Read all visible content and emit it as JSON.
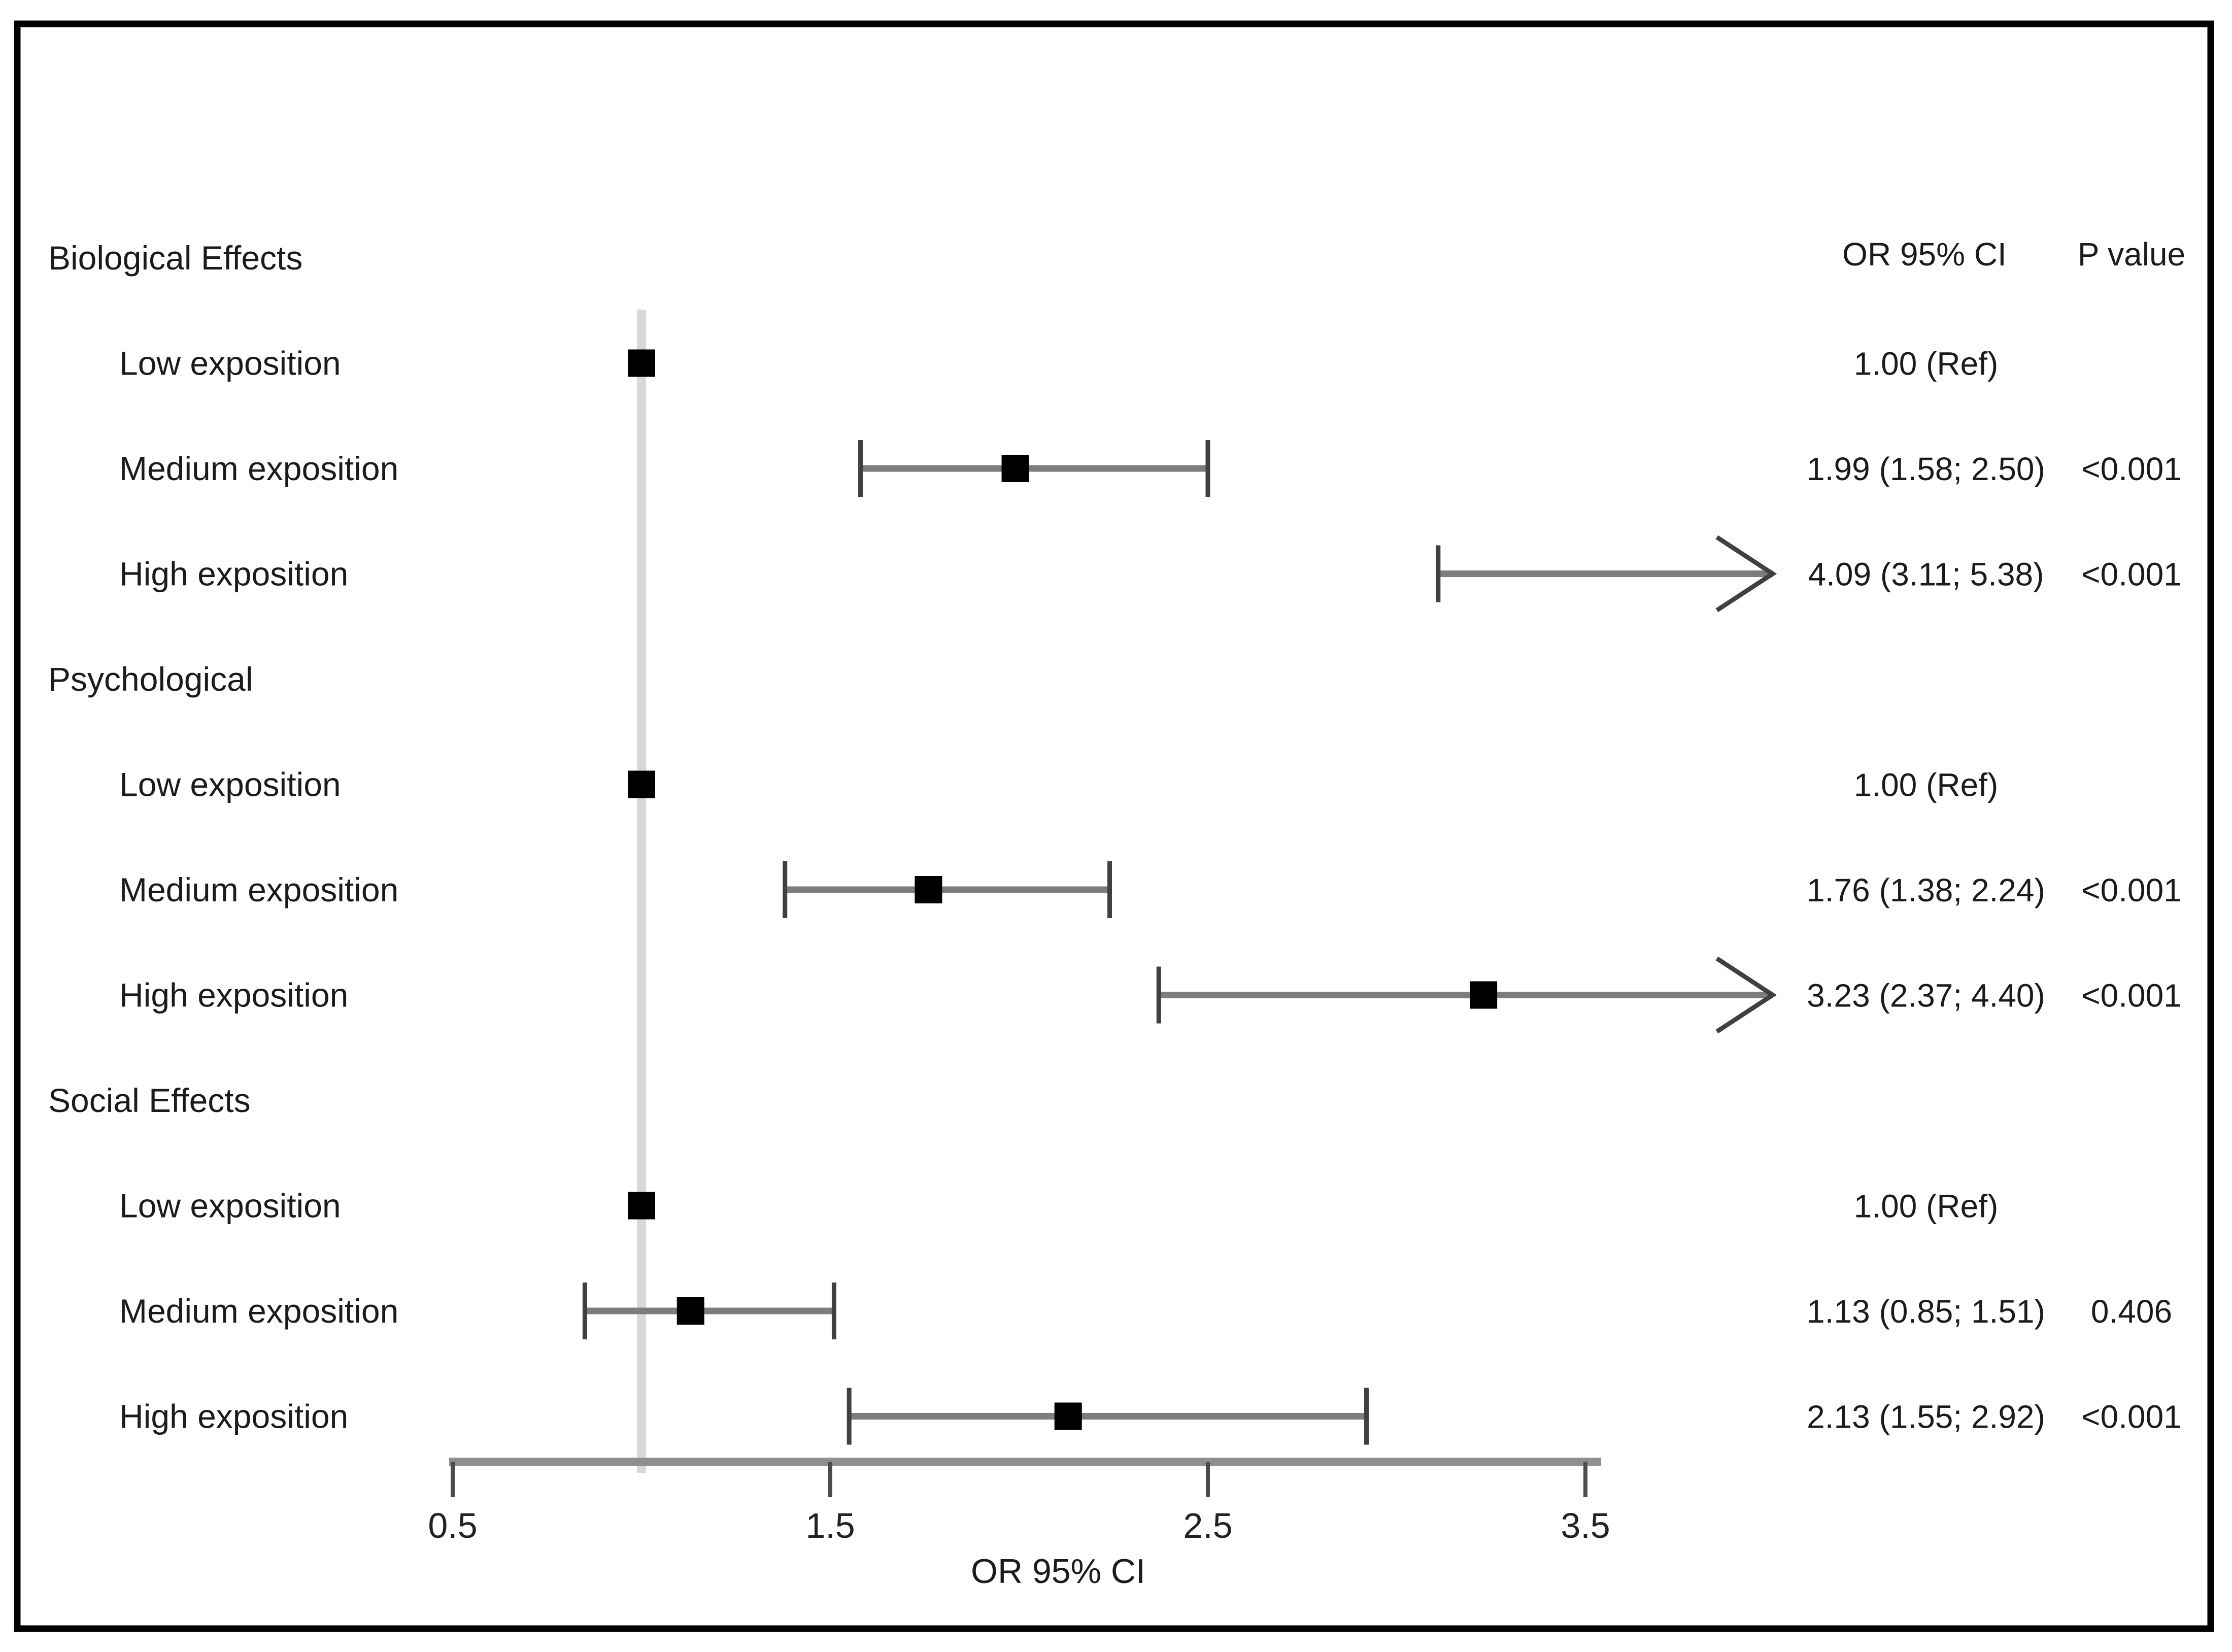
{
  "figure": {
    "or_column_header": "OR 95% CI",
    "p_column_header": "P value"
  },
  "chart_data": {
    "type": "forest",
    "title": "",
    "xlabel": "OR 95% CI",
    "x_ticks": [
      0.5,
      1.5,
      2.5,
      3.5
    ],
    "x_range": [
      0.5,
      3.5
    ],
    "reference_line": 1.0,
    "arrow_note": "upper CI bounds of 5.38 and 4.40 exceed axis and are drawn as right-pointing arrows clipped near OR 4.0",
    "groups": [
      {
        "label": "Biological Effects",
        "rows": [
          {
            "label": "Low exposition",
            "or": 1.0,
            "ci": null,
            "arrow": false,
            "or_label": "1.00 (Ref)",
            "p_label": ""
          },
          {
            "label": "Medium exposition",
            "or": 1.99,
            "ci": [
              1.58,
              2.5
            ],
            "arrow": false,
            "or_label": "1.99 (1.58; 2.50)",
            "p_label": "<0.001"
          },
          {
            "label": "High exposition",
            "or": 4.09,
            "ci": [
              3.11,
              5.38
            ],
            "arrow": true,
            "or_label": "4.09 (3.11; 5.38)",
            "p_label": "<0.001"
          }
        ]
      },
      {
        "label": "Psychological",
        "rows": [
          {
            "label": "Low exposition",
            "or": 1.0,
            "ci": null,
            "arrow": false,
            "or_label": "1.00 (Ref)",
            "p_label": ""
          },
          {
            "label": "Medium exposition",
            "or": 1.76,
            "ci": [
              1.38,
              2.24
            ],
            "arrow": false,
            "or_label": "1.76 (1.38; 2.24)",
            "p_label": "<0.001"
          },
          {
            "label": "High exposition",
            "or": 3.23,
            "ci": [
              2.37,
              4.4
            ],
            "arrow": true,
            "or_label": "3.23 (2.37; 4.40)",
            "p_label": "<0.001"
          }
        ]
      },
      {
        "label": "Social Effects",
        "rows": [
          {
            "label": "Low exposition",
            "or": 1.0,
            "ci": null,
            "arrow": false,
            "or_label": "1.00 (Ref)",
            "p_label": ""
          },
          {
            "label": "Medium exposition",
            "or": 1.13,
            "ci": [
              0.85,
              1.51
            ],
            "arrow": false,
            "or_label": "1.13 (0.85; 1.51)",
            "p_label": "0.406"
          },
          {
            "label": "High exposition",
            "or": 2.13,
            "ci": [
              1.55,
              2.92
            ],
            "arrow": false,
            "or_label": "2.13 (1.55; 2.92)",
            "p_label": "<0.001"
          }
        ]
      }
    ],
    "colors": {
      "marker": "#000000",
      "ci_line": "#7d7d7d",
      "cap": "#404040",
      "ref_line": "#d9d9d9",
      "axis": "#8f8f8f",
      "text": "#1b1b1b",
      "border": "#000000",
      "background": "#ffffff"
    }
  }
}
